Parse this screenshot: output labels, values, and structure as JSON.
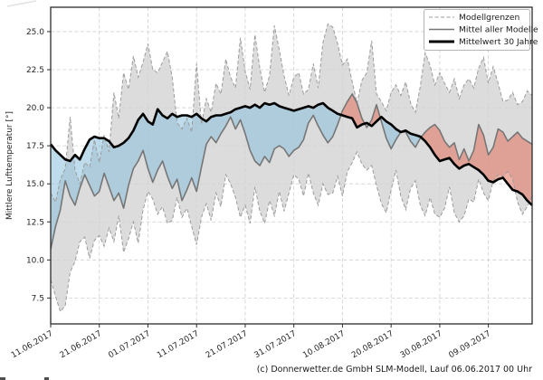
{
  "figure": {
    "caption": "(c) Donnerwetter.de GmbH SLM-Modell, Lauf 06.06.2017 00 Uhr"
  },
  "legend": {
    "items": [
      {
        "label": "Modellgrenzen",
        "style": "dashed-gray"
      },
      {
        "label": "Mittel aller Modelle",
        "style": "solid-gray"
      },
      {
        "label": "Mittelwert 30 Jahre",
        "style": "thick-black"
      }
    ]
  },
  "chart_data": {
    "type": "line",
    "title": "",
    "xlabel": "",
    "y_label": "Mittlere Lufttemperatur [°]",
    "grid": true,
    "legend_position": "top-right",
    "x_unit": "days since 11.06.2017",
    "x_max": 99,
    "y_min": 5.8,
    "y_max": 26.6,
    "x_tick_days": [
      0,
      10,
      20,
      30,
      40,
      50,
      60,
      70,
      80,
      90
    ],
    "x_tick_labels": [
      "11.06.2017",
      "21.06.2017",
      "01.07.2017",
      "11.07.2017",
      "21.07.2017",
      "31.07.2017",
      "10.08.2017",
      "20.08.2017",
      "30.08.2017",
      "09.09.2017"
    ],
    "y_tick_values": [
      7.5,
      10.0,
      12.5,
      15.0,
      17.5,
      20.0,
      22.5,
      25.0
    ],
    "y_tick_labels": [
      "7.5",
      "10.0",
      "12.5",
      "15.0",
      "17.5",
      "20.0",
      "22.5",
      "25.0"
    ],
    "series": [
      {
        "name": "Modellgrenzen (Maximum)",
        "role": "band_max",
        "values": [
          14.4,
          13.8,
          15.3,
          16.0,
          19.4,
          15.9,
          15.0,
          16.4,
          16.1,
          17.9,
          16.4,
          18.2,
          17.1,
          21.0,
          19.3,
          22.3,
          21.2,
          23.4,
          22.0,
          23.0,
          24.2,
          22.5,
          22.3,
          23.0,
          23.7,
          22.0,
          19.0,
          18.6,
          19.3,
          18.4,
          22.9,
          18.9,
          20.6,
          19.7,
          21.6,
          20.9,
          23.2,
          22.0,
          21.3,
          24.6,
          22.4,
          21.2,
          24.8,
          22.6,
          21.0,
          22.1,
          25.4,
          23.8,
          22.1,
          20.8,
          22.0,
          22.3,
          20.9,
          21.2,
          22.9,
          21.3,
          24.3,
          25.5,
          25.3,
          24.2,
          22.8,
          23.2,
          21.7,
          20.3,
          21.8,
          22.3,
          24.4,
          20.9,
          20.4,
          19.8,
          21.0,
          21.5,
          20.8,
          21.7,
          20.3,
          19.7,
          21.4,
          23.6,
          22.8,
          21.5,
          22.3,
          21.6,
          21.0,
          21.9,
          20.6,
          21.5,
          21.9,
          21.3,
          22.6,
          23.3,
          21.6,
          22.7,
          21.6,
          20.4,
          20.5,
          21.0,
          20.2,
          20.4,
          21.1,
          20.8
        ]
      },
      {
        "name": "Modellgrenzen (Minimum)",
        "role": "band_min",
        "values": [
          8.7,
          7.6,
          6.6,
          7.0,
          9.2,
          9.9,
          11.2,
          11.5,
          10.1,
          11.3,
          11.6,
          10.9,
          12.1,
          11.2,
          12.9,
          10.5,
          11.4,
          12.5,
          11.1,
          13.3,
          14.5,
          14.0,
          13.0,
          13.5,
          12.4,
          12.6,
          14.1,
          12.8,
          13.4,
          12.2,
          11.0,
          12.8,
          13.7,
          12.6,
          14.4,
          13.5,
          15.6,
          15.0,
          14.1,
          12.8,
          13.6,
          12.4,
          14.8,
          13.2,
          12.4,
          13.9,
          12.9,
          14.5,
          13.2,
          14.4,
          15.6,
          15.3,
          14.2,
          15.7,
          14.4,
          13.6,
          15.0,
          14.3,
          14.4,
          15.5,
          14.2,
          15.8,
          16.4,
          17.1,
          16.3,
          15.9,
          16.2,
          14.9,
          13.7,
          13.1,
          14.6,
          15.9,
          14.2,
          13.3,
          14.7,
          15.2,
          13.6,
          12.9,
          14.1,
          13.0,
          12.8,
          13.4,
          14.8,
          13.1,
          12.5,
          12.9,
          14.0,
          13.8,
          15.3,
          14.4,
          13.9,
          15.2,
          15.6,
          15.5,
          15.8,
          15.3,
          13.8,
          13.0,
          13.5,
          14.2
        ]
      },
      {
        "name": "Mittel aller Modelle",
        "role": "model_mean",
        "values": [
          10.7,
          12.2,
          13.3,
          15.2,
          14.2,
          13.6,
          14.7,
          15.6,
          14.9,
          14.2,
          14.5,
          15.7,
          14.8,
          13.9,
          14.4,
          13.4,
          14.9,
          16.0,
          16.5,
          17.2,
          16.0,
          15.1,
          15.9,
          16.5,
          15.5,
          14.7,
          15.3,
          13.9,
          14.6,
          15.4,
          14.5,
          16.1,
          17.6,
          18.1,
          17.7,
          18.3,
          18.8,
          19.4,
          18.6,
          19.2,
          18.3,
          17.2,
          16.5,
          16.2,
          16.8,
          16.4,
          17.3,
          17.5,
          17.3,
          16.8,
          17.2,
          17.4,
          17.9,
          19.0,
          19.5,
          18.8,
          18.2,
          17.7,
          18.1,
          18.9,
          19.8,
          20.4,
          20.9,
          20.3,
          19.3,
          18.7,
          19.2,
          20.2,
          19.1,
          18.0,
          17.3,
          17.9,
          18.4,
          18.4,
          17.8,
          17.4,
          18.0,
          18.4,
          18.7,
          18.9,
          18.5,
          17.8,
          17.4,
          17.7,
          16.6,
          17.3,
          16.5,
          17.2,
          18.9,
          18.2,
          16.9,
          17.4,
          18.6,
          18.4,
          17.8,
          18.1,
          18.4,
          18.0,
          17.8,
          17.6
        ]
      },
      {
        "name": "Mittelwert 30 Jahre",
        "role": "mean30",
        "values": [
          17.6,
          17.2,
          16.9,
          16.6,
          16.5,
          16.9,
          16.6,
          17.3,
          17.9,
          18.1,
          18.0,
          18.0,
          17.8,
          17.4,
          17.5,
          17.7,
          18.0,
          18.5,
          19.2,
          19.6,
          19.1,
          18.9,
          19.9,
          19.5,
          19.3,
          19.6,
          19.4,
          19.5,
          19.5,
          19.4,
          19.6,
          19.3,
          19.1,
          19.4,
          19.5,
          19.5,
          19.6,
          19.7,
          19.9,
          20.0,
          20.1,
          20.0,
          20.2,
          20.0,
          20.3,
          20.2,
          20.3,
          20.1,
          20.0,
          19.9,
          19.8,
          19.9,
          20.0,
          20.1,
          20.0,
          20.2,
          20.3,
          20.0,
          19.8,
          19.6,
          19.5,
          19.4,
          19.3,
          18.7,
          18.9,
          19.0,
          18.8,
          19.1,
          19.4,
          19.1,
          18.9,
          18.6,
          18.4,
          18.5,
          18.3,
          18.2,
          18.1,
          17.8,
          17.4,
          16.9,
          16.5,
          16.6,
          16.7,
          16.3,
          16.0,
          16.2,
          16.3,
          16.1,
          15.9,
          15.6,
          15.2,
          15.1,
          15.3,
          15.4,
          15.0,
          14.6,
          14.5,
          14.3,
          13.9,
          13.6
        ]
      }
    ],
    "colors": {
      "band_fill": "#d2d2d2",
      "band_edge": "#9b9b9b",
      "cold_fill": "#8bbfdc",
      "warm_fill": "#e2715c",
      "model_mean_line": "#767676",
      "mean30_line": "#000000",
      "grid": "#cfcfcf",
      "spine": "#2b2b2b",
      "tick_text": "#262626"
    }
  }
}
